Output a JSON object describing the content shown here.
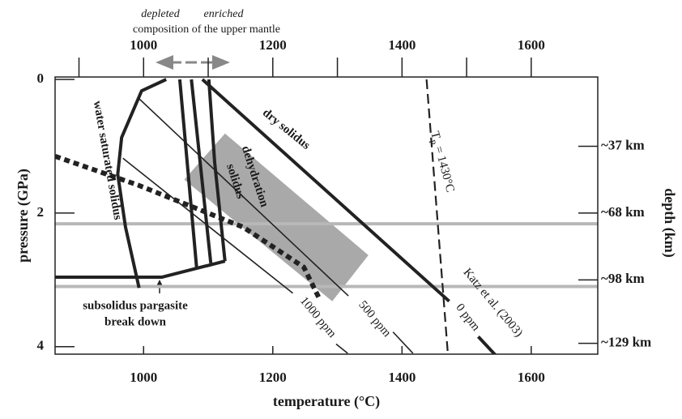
{
  "chart_data": {
    "type": "line",
    "xlabel": "temperature (°C)",
    "ylabel": "pressure (GPa)",
    "y2label": "depth (km)",
    "xlim": [
      863,
      1703
    ],
    "ylim": [
      0,
      4.1
    ],
    "y2lim": [
      0,
      4.1
    ],
    "xticks": [
      1000,
      1200,
      1400,
      1600
    ],
    "xminor": [
      900,
      1100,
      1300,
      1500
    ],
    "yticks": [
      0,
      2,
      4
    ],
    "y2ticks": [
      {
        "value": 1,
        "label": "~37 km"
      },
      {
        "value": 2,
        "label": "~68 km"
      },
      {
        "value": 3,
        "label": "~98 km"
      },
      {
        "value": 3.95,
        "label": "~129 km"
      }
    ],
    "top_labels": {
      "left": "depleted",
      "right": "enriched",
      "caption": "composition of the upper mantle"
    },
    "hlines": {
      "color": "#b8b8b8",
      "values": [
        2.16,
        3.1
      ]
    },
    "regions": [
      {
        "color": "#a9a9a9",
        "x": [
          1126,
          1063,
          1292,
          1348
        ],
        "y": [
          0.81,
          1.5,
          3.32,
          2.63
        ]
      }
    ],
    "series": [
      {
        "color": "#222222",
        "style": "thick",
        "x": [
          1091,
          1473,
          null,
          1518,
          1546
        ],
        "y": [
          0,
          3.32,
          null,
          3.85,
          4.14
        ]
      },
      {
        "color": "#222222",
        "style": "thin",
        "x": [
          991,
          1317,
          null,
          1386,
          1417
        ],
        "y": [
          0.27,
          3.24,
          null,
          3.78,
          4.1
        ]
      },
      {
        "color": "#222222",
        "style": "thin",
        "x": [
          968,
          1231,
          null,
          1298,
          1316
        ],
        "y": [
          1.18,
          3.2,
          null,
          3.96,
          4.1
        ]
      },
      {
        "color": "#222222",
        "style": "thick",
        "x": [
          1035,
          997,
          966,
          960,
          972,
          993
        ],
        "y": [
          0,
          0.17,
          0.87,
          1.42,
          2.21,
          3.12
        ]
      },
      {
        "color": "#222222",
        "style": "thick",
        "x": [
          863,
          1028,
          1126
        ],
        "y": [
          2.96,
          2.96,
          2.72
        ]
      },
      {
        "color": "#222222",
        "style": "thick",
        "x": [
          1056,
          1082
        ],
        "y": [
          0,
          2.81
        ]
      },
      {
        "color": "#222222",
        "style": "thick",
        "x": [
          1074,
          1104
        ],
        "y": [
          0,
          2.75
        ]
      },
      {
        "color": "#222222",
        "style": "thick",
        "x": [
          1101,
          1110,
          1126
        ],
        "y": [
          0,
          1.24,
          2.72
        ]
      },
      {
        "color": "#222222",
        "style": "dotted",
        "x": [
          863,
          991,
          1154,
          1248,
          1273
        ],
        "y": [
          1.15,
          1.58,
          2.21,
          2.81,
          3.3
        ]
      },
      {
        "color": "#222222",
        "style": "dashed",
        "x": [
          1438,
          1471
        ],
        "y": [
          0,
          4.11
        ]
      }
    ],
    "annotations": [
      "dry solidus",
      "water saturated solidus",
      "dehydration",
      "solidus",
      "subsolidus pargasite",
      "break down",
      "1000 ppm",
      "500 ppm",
      "0 ppm",
      "Katz et al. (2003)"
    ],
    "tp_label": {
      "text": "T",
      "sub": "P",
      "rest": " = 1430°C"
    }
  }
}
